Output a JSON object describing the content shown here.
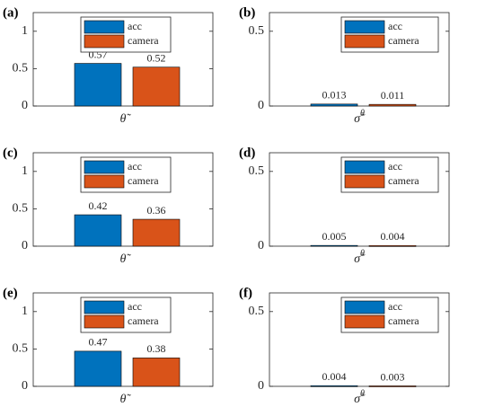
{
  "chart_data": [
    {
      "type": "bar",
      "panel_label": "(a)",
      "x_label": "θ̃",
      "ylim": [
        0,
        1.25
      ],
      "yticks": [
        0,
        0.5,
        1
      ],
      "legend": "north",
      "series": [
        {
          "name": "acc",
          "color": "#0072BD",
          "values": [
            0.57
          ]
        },
        {
          "name": "camera",
          "color": "#D95319",
          "values": [
            0.52
          ]
        }
      ]
    },
    {
      "type": "bar",
      "panel_label": "(b)",
      "x_label": "σ̃",
      "x_label_superscript": "θ",
      "ylim": [
        0,
        0.625
      ],
      "yticks": [
        0,
        0.5
      ],
      "legend": "northeast",
      "series": [
        {
          "name": "acc",
          "color": "#0072BD",
          "values": [
            0.013
          ]
        },
        {
          "name": "camera",
          "color": "#D95319",
          "values": [
            0.011
          ]
        }
      ]
    },
    {
      "type": "bar",
      "panel_label": "(c)",
      "x_label": "θ̃",
      "ylim": [
        0,
        1.25
      ],
      "yticks": [
        0,
        0.5,
        1
      ],
      "legend": "north",
      "series": [
        {
          "name": "acc",
          "color": "#0072BD",
          "values": [
            0.42
          ]
        },
        {
          "name": "camera",
          "color": "#D95319",
          "values": [
            0.36
          ]
        }
      ]
    },
    {
      "type": "bar",
      "panel_label": "(d)",
      "x_label": "σ̃",
      "x_label_superscript": "θ",
      "ylim": [
        0,
        0.625
      ],
      "yticks": [
        0,
        0.5
      ],
      "legend": "northeast",
      "series": [
        {
          "name": "acc",
          "color": "#0072BD",
          "values": [
            0.005
          ]
        },
        {
          "name": "camera",
          "color": "#D95319",
          "values": [
            0.004
          ]
        }
      ]
    },
    {
      "type": "bar",
      "panel_label": "(e)",
      "x_label": "θ̃",
      "ylim": [
        0,
        1.25
      ],
      "yticks": [
        0,
        0.5,
        1
      ],
      "legend": "north",
      "series": [
        {
          "name": "acc",
          "color": "#0072BD",
          "values": [
            0.47
          ]
        },
        {
          "name": "camera",
          "color": "#D95319",
          "values": [
            0.38
          ]
        }
      ]
    },
    {
      "type": "bar",
      "panel_label": "(f)",
      "x_label": "σ̃",
      "x_label_superscript": "θ",
      "ylim": [
        0,
        0.625
      ],
      "yticks": [
        0,
        0.5
      ],
      "legend": "northeast",
      "series": [
        {
          "name": "acc",
          "color": "#0072BD",
          "values": [
            0.004
          ]
        },
        {
          "name": "camera",
          "color": "#D95319",
          "values": [
            0.003
          ]
        }
      ]
    }
  ]
}
